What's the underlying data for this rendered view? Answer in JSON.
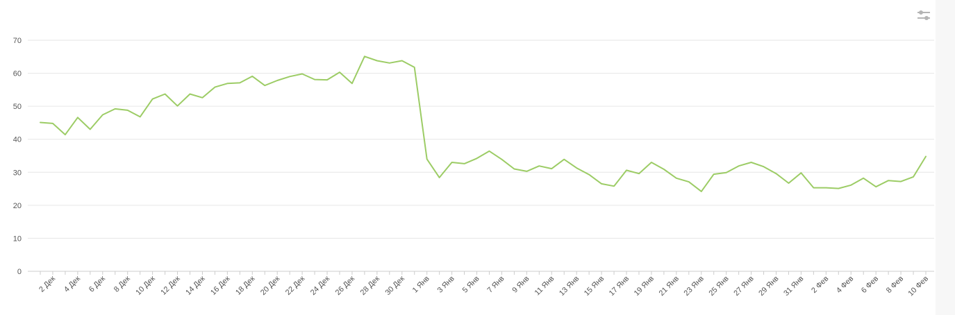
{
  "chart_data": {
    "type": "line",
    "title": "",
    "xlabel": "",
    "ylabel": "",
    "ylim": [
      0,
      70
    ],
    "yticks": [
      0,
      10,
      20,
      30,
      40,
      50,
      60,
      70
    ],
    "grid": true,
    "legend": "none",
    "x": [
      "1 Дек",
      "2 Дек",
      "3 Дек",
      "4 Дек",
      "5 Дек",
      "6 Дек",
      "7 Дек",
      "8 Дек",
      "9 Дек",
      "10 Дек",
      "11 Дек",
      "12 Дек",
      "13 Дек",
      "14 Дек",
      "15 Дек",
      "16 Дек",
      "17 Дек",
      "18 Дек",
      "19 Дек",
      "20 Дек",
      "21 Дек",
      "22 Дек",
      "23 Дек",
      "24 Дек",
      "25 Дек",
      "26 Дек",
      "27 Дек",
      "28 Дек",
      "29 Дек",
      "30 Дек",
      "31 Дек",
      "1 Янв",
      "2 Янв",
      "3 Янв",
      "4 Янв",
      "5 Янв",
      "6 Янв",
      "7 Янв",
      "8 Янв",
      "9 Янв",
      "10 Янв",
      "11 Янв",
      "12 Янв",
      "13 Янв",
      "14 Янв",
      "15 Янв",
      "16 Янв",
      "17 Янв",
      "18 Янв",
      "19 Янв",
      "20 Янв",
      "21 Янв",
      "22 Янв",
      "23 Янв",
      "24 Янв",
      "25 Янв",
      "26 Янв",
      "27 Янв",
      "28 Янв",
      "29 Янв",
      "30 Янв",
      "31 Янв",
      "1 Фев",
      "2 Фев",
      "3 Фев",
      "4 Фев",
      "5 Фев",
      "6 Фев",
      "7 Фев",
      "8 Фев",
      "9 Фев",
      "10 Фев"
    ],
    "x_tick_labels": [
      "2 Дек",
      "4 Дек",
      "6 Дек",
      "8 Дек",
      "10 Дек",
      "12 Дек",
      "14 Дек",
      "16 Дек",
      "18 Дек",
      "20 Дек",
      "22 Дек",
      "24 Дек",
      "26 Дек",
      "28 Дек",
      "30 Дек",
      "1 Янв",
      "3 Янв",
      "5 Янв",
      "7 Янв",
      "9 Янв",
      "11 Янв",
      "13 Янв",
      "15 Янв",
      "17 Янв",
      "19 Янв",
      "21 Янв",
      "23 Янв",
      "25 Янв",
      "27 Янв",
      "29 Янв",
      "31 Янв",
      "2 Фев",
      "4 Фев",
      "6 Фев",
      "8 Фев",
      "10 Фев"
    ],
    "series": [
      {
        "color": "#9ccc65",
        "values": [
          45.1,
          44.8,
          41.4,
          46.6,
          43.0,
          47.4,
          49.2,
          48.8,
          46.8,
          52.2,
          53.7,
          50.1,
          53.7,
          52.6,
          55.8,
          56.9,
          57.1,
          59.1,
          56.3,
          57.8,
          59.0,
          59.8,
          58.1,
          58.0,
          60.3,
          56.9,
          65.1,
          63.8,
          63.1,
          63.8,
          61.8,
          34.0,
          28.4,
          33.0,
          32.6,
          34.2,
          36.4,
          33.9,
          31.0,
          30.3,
          31.9,
          31.1,
          33.9,
          31.3,
          29.3,
          26.5,
          25.8,
          30.6,
          29.6,
          33.0,
          30.9,
          28.2,
          27.1,
          24.2,
          29.4,
          29.9,
          31.9,
          33.0,
          31.7,
          29.6,
          26.7,
          29.8,
          25.3,
          25.3,
          25.1,
          26.1,
          28.2,
          25.6,
          27.5,
          27.2,
          28.6,
          34.8
        ]
      }
    ]
  },
  "icons": {
    "settings": "sliders-icon"
  }
}
